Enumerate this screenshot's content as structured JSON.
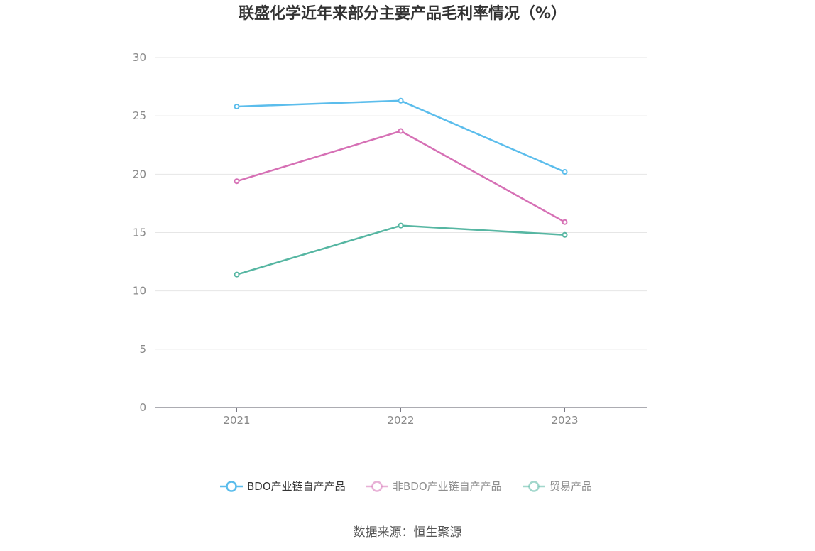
{
  "chart_data": {
    "type": "line",
    "title": "联盛化学近年来部分主要产品毛利率情况（%）",
    "categories": [
      "2021",
      "2022",
      "2023"
    ],
    "ylim": [
      0,
      30
    ],
    "yticks": [
      0,
      5,
      10,
      15,
      20,
      25,
      30
    ],
    "grid": true,
    "legend_position": "bottom",
    "series": [
      {
        "name": "BDO产业链自产产品",
        "values": [
          25.8,
          26.3,
          20.2
        ],
        "color": "#5bbdec"
      },
      {
        "name": "非BDO产业链自产产品",
        "values": [
          19.4,
          23.7,
          15.9
        ],
        "color": "#d670b5"
      },
      {
        "name": "贸易产品",
        "values": [
          11.4,
          15.6,
          14.8
        ],
        "color": "#56b6a2"
      }
    ],
    "source": "数据来源：恒生聚源"
  }
}
